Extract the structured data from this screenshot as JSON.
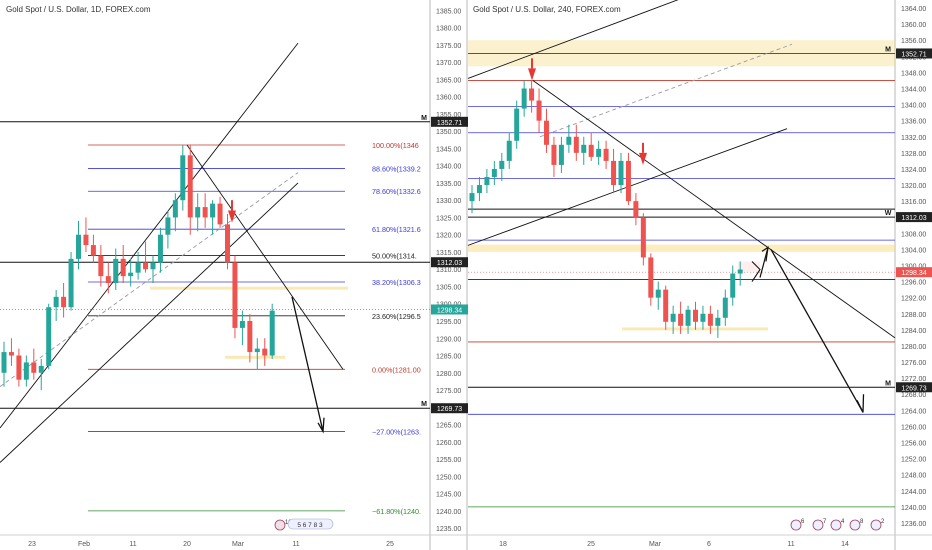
{
  "left": {
    "title": "Gold Spot / U.S. Dollar, 1D, FOREX.com",
    "yTicks": [
      1385,
      1380,
      1375,
      1370,
      1365,
      1360,
      1355,
      1350,
      1345,
      1340,
      1335,
      1330,
      1325,
      1320,
      1315,
      1310,
      1305,
      1300,
      1295,
      1290,
      1285,
      1280,
      1275,
      1270,
      1265,
      1260,
      1255,
      1250,
      1245,
      1240,
      1235
    ],
    "yRange": [
      1233,
      1388
    ],
    "xLabels": [
      "23",
      "Feb",
      "11",
      "20",
      "Mar",
      "11",
      "25"
    ],
    "priceTags": [
      {
        "text": "1352.71",
        "value": 1352.71,
        "style": "dark",
        "letter": "M"
      },
      {
        "text": "1312.03",
        "value": 1312.03,
        "style": "dark",
        "letter": ""
      },
      {
        "text": "1298.34",
        "value": 1298.34,
        "style": "teal",
        "letter": ""
      },
      {
        "text": "1269.73",
        "value": 1269.73,
        "style": "dark",
        "letter": "M"
      }
    ],
    "fib": [
      {
        "label": "100.00%(1346",
        "value": 1346,
        "color": "#c0392b"
      },
      {
        "label": "88.60%(1339.2",
        "value": 1339.2,
        "color": "#3b3bd6"
      },
      {
        "label": "78.60%(1332.6",
        "value": 1332.6,
        "color": "#3b3bd6"
      },
      {
        "label": "61.80%(1321.6",
        "value": 1321.6,
        "color": "#3b3bd6"
      },
      {
        "label": "50.00%(1314.",
        "value": 1314.0,
        "color": "#222222"
      },
      {
        "label": "38.20%(1306.3",
        "value": 1306.3,
        "color": "#3b3bd6"
      },
      {
        "label": "23.60%(1296.5",
        "value": 1296.5,
        "color": "#222222"
      },
      {
        "label": "0.00%(1281.00",
        "value": 1281.0,
        "color": "#c0392b"
      },
      {
        "label": "−27.00%(1263.",
        "value": 1263.0,
        "color": "#3b3bd6"
      },
      {
        "label": "−61.80%(1240.",
        "value": 1240.0,
        "color": "#2e8b2e"
      }
    ],
    "eventBadge": "5 6 7 8 3",
    "eventCount": "10"
  },
  "right": {
    "title": "Gold Spot / U.S. Dollar, 240, FOREX.com",
    "yTicks": [
      1364,
      1360,
      1356,
      1352,
      1348,
      1344,
      1340,
      1336,
      1332,
      1328,
      1324,
      1320,
      1316,
      1312,
      1308,
      1304,
      1300,
      1296,
      1292,
      1288,
      1284,
      1280,
      1276,
      1272,
      1268,
      1264,
      1260,
      1256,
      1252,
      1248,
      1244,
      1240,
      1236
    ],
    "yRange": [
      1233,
      1366
    ],
    "xLabels": [
      "18",
      "25",
      "Mar",
      "6",
      "11",
      "14"
    ],
    "priceTags": [
      {
        "text": "1352.71",
        "value": 1352.71,
        "style": "dark",
        "letter": "M"
      },
      {
        "text": "1312.03",
        "value": 1312.03,
        "style": "dark",
        "letter": "W"
      },
      {
        "text": "1298.34",
        "value": 1298.34,
        "style": "red",
        "letter": ""
      },
      {
        "text": "1269.73",
        "value": 1269.73,
        "style": "dark",
        "letter": "M"
      }
    ],
    "eventCounts": [
      "6",
      "7",
      "4",
      "8",
      "2"
    ]
  },
  "chart_data": [
    {
      "type": "candlestick",
      "title": "Gold Spot / U.S. Dollar, 1D, FOREX.com",
      "ylim": [
        1233,
        1388
      ],
      "series": [
        {
          "o": 1280,
          "h": 1289,
          "l": 1276,
          "c": 1286
        },
        {
          "o": 1286,
          "h": 1290,
          "l": 1282,
          "c": 1285
        },
        {
          "o": 1285,
          "h": 1287,
          "l": 1276,
          "c": 1278
        },
        {
          "o": 1278,
          "h": 1285,
          "l": 1276,
          "c": 1283
        },
        {
          "o": 1283,
          "h": 1287,
          "l": 1278,
          "c": 1280
        },
        {
          "o": 1280,
          "h": 1284,
          "l": 1275,
          "c": 1282
        },
        {
          "o": 1282,
          "h": 1300,
          "l": 1281,
          "c": 1299
        },
        {
          "o": 1299,
          "h": 1304,
          "l": 1295,
          "c": 1302
        },
        {
          "o": 1302,
          "h": 1306,
          "l": 1296,
          "c": 1299
        },
        {
          "o": 1299,
          "h": 1315,
          "l": 1298,
          "c": 1313
        },
        {
          "o": 1313,
          "h": 1324,
          "l": 1310,
          "c": 1320
        },
        {
          "o": 1320,
          "h": 1325,
          "l": 1315,
          "c": 1317
        },
        {
          "o": 1317,
          "h": 1320,
          "l": 1312,
          "c": 1314
        },
        {
          "o": 1314,
          "h": 1317,
          "l": 1305,
          "c": 1308
        },
        {
          "o": 1308,
          "h": 1312,
          "l": 1303,
          "c": 1306
        },
        {
          "o": 1306,
          "h": 1316,
          "l": 1304,
          "c": 1313
        },
        {
          "o": 1313,
          "h": 1317,
          "l": 1306,
          "c": 1308
        },
        {
          "o": 1308,
          "h": 1313,
          "l": 1305,
          "c": 1309
        },
        {
          "o": 1309,
          "h": 1315,
          "l": 1307,
          "c": 1312
        },
        {
          "o": 1312,
          "h": 1318,
          "l": 1309,
          "c": 1310
        },
        {
          "o": 1310,
          "h": 1314,
          "l": 1306,
          "c": 1312
        },
        {
          "o": 1312,
          "h": 1322,
          "l": 1309,
          "c": 1320
        },
        {
          "o": 1320,
          "h": 1327,
          "l": 1316,
          "c": 1325
        },
        {
          "o": 1325,
          "h": 1332,
          "l": 1321,
          "c": 1330
        },
        {
          "o": 1330,
          "h": 1346,
          "l": 1327,
          "c": 1343
        },
        {
          "o": 1343,
          "h": 1346,
          "l": 1320,
          "c": 1325
        },
        {
          "o": 1325,
          "h": 1332,
          "l": 1321,
          "c": 1328
        },
        {
          "o": 1328,
          "h": 1332,
          "l": 1322,
          "c": 1325
        },
        {
          "o": 1325,
          "h": 1330,
          "l": 1320,
          "c": 1329
        },
        {
          "o": 1329,
          "h": 1331,
          "l": 1322,
          "c": 1323
        },
        {
          "o": 1323,
          "h": 1326,
          "l": 1310,
          "c": 1312
        },
        {
          "o": 1312,
          "h": 1314,
          "l": 1290,
          "c": 1293
        },
        {
          "o": 1293,
          "h": 1298,
          "l": 1288,
          "c": 1295
        },
        {
          "o": 1295,
          "h": 1297,
          "l": 1283,
          "c": 1286
        },
        {
          "o": 1286,
          "h": 1290,
          "l": 1281,
          "c": 1287
        },
        {
          "o": 1287,
          "h": 1290,
          "l": 1282,
          "c": 1285
        },
        {
          "o": 1285,
          "h": 1300,
          "l": 1284,
          "c": 1298
        }
      ]
    },
    {
      "type": "candlestick",
      "title": "Gold Spot / U.S. Dollar, 240, FOREX.com",
      "ylim": [
        1233,
        1366
      ],
      "series": [
        {
          "o": 1316,
          "h": 1320,
          "l": 1313,
          "c": 1318
        },
        {
          "o": 1318,
          "h": 1322,
          "l": 1316,
          "c": 1320
        },
        {
          "o": 1320,
          "h": 1324,
          "l": 1318,
          "c": 1322
        },
        {
          "o": 1322,
          "h": 1326,
          "l": 1320,
          "c": 1324
        },
        {
          "o": 1324,
          "h": 1328,
          "l": 1321,
          "c": 1326
        },
        {
          "o": 1326,
          "h": 1333,
          "l": 1324,
          "c": 1331
        },
        {
          "o": 1331,
          "h": 1341,
          "l": 1329,
          "c": 1339
        },
        {
          "o": 1339,
          "h": 1346,
          "l": 1337,
          "c": 1344
        },
        {
          "o": 1344,
          "h": 1346,
          "l": 1338,
          "c": 1341
        },
        {
          "o": 1341,
          "h": 1344,
          "l": 1333,
          "c": 1336
        },
        {
          "o": 1336,
          "h": 1339,
          "l": 1328,
          "c": 1330
        },
        {
          "o": 1330,
          "h": 1332,
          "l": 1322,
          "c": 1325
        },
        {
          "o": 1325,
          "h": 1332,
          "l": 1323,
          "c": 1330
        },
        {
          "o": 1330,
          "h": 1335,
          "l": 1328,
          "c": 1332
        },
        {
          "o": 1332,
          "h": 1335,
          "l": 1326,
          "c": 1328
        },
        {
          "o": 1328,
          "h": 1332,
          "l": 1325,
          "c": 1330
        },
        {
          "o": 1330,
          "h": 1333,
          "l": 1326,
          "c": 1327
        },
        {
          "o": 1327,
          "h": 1331,
          "l": 1325,
          "c": 1329
        },
        {
          "o": 1329,
          "h": 1331,
          "l": 1324,
          "c": 1326
        },
        {
          "o": 1326,
          "h": 1329,
          "l": 1318,
          "c": 1320
        },
        {
          "o": 1320,
          "h": 1328,
          "l": 1318,
          "c": 1326
        },
        {
          "o": 1326,
          "h": 1328,
          "l": 1315,
          "c": 1316
        },
        {
          "o": 1316,
          "h": 1318,
          "l": 1310,
          "c": 1312
        },
        {
          "o": 1312,
          "h": 1313,
          "l": 1300,
          "c": 1302
        },
        {
          "o": 1302,
          "h": 1303,
          "l": 1290,
          "c": 1292
        },
        {
          "o": 1292,
          "h": 1296,
          "l": 1289,
          "c": 1294
        },
        {
          "o": 1294,
          "h": 1295,
          "l": 1284,
          "c": 1286
        },
        {
          "o": 1286,
          "h": 1290,
          "l": 1283,
          "c": 1288
        },
        {
          "o": 1288,
          "h": 1291,
          "l": 1283,
          "c": 1285
        },
        {
          "o": 1285,
          "h": 1290,
          "l": 1283,
          "c": 1289
        },
        {
          "o": 1289,
          "h": 1291,
          "l": 1284,
          "c": 1286
        },
        {
          "o": 1286,
          "h": 1290,
          "l": 1284,
          "c": 1288
        },
        {
          "o": 1288,
          "h": 1290,
          "l": 1283,
          "c": 1285
        },
        {
          "o": 1285,
          "h": 1289,
          "l": 1282,
          "c": 1287
        },
        {
          "o": 1287,
          "h": 1294,
          "l": 1285,
          "c": 1292
        },
        {
          "o": 1292,
          "h": 1300,
          "l": 1290,
          "c": 1298
        },
        {
          "o": 1298,
          "h": 1301,
          "l": 1295,
          "c": 1299
        }
      ]
    }
  ]
}
